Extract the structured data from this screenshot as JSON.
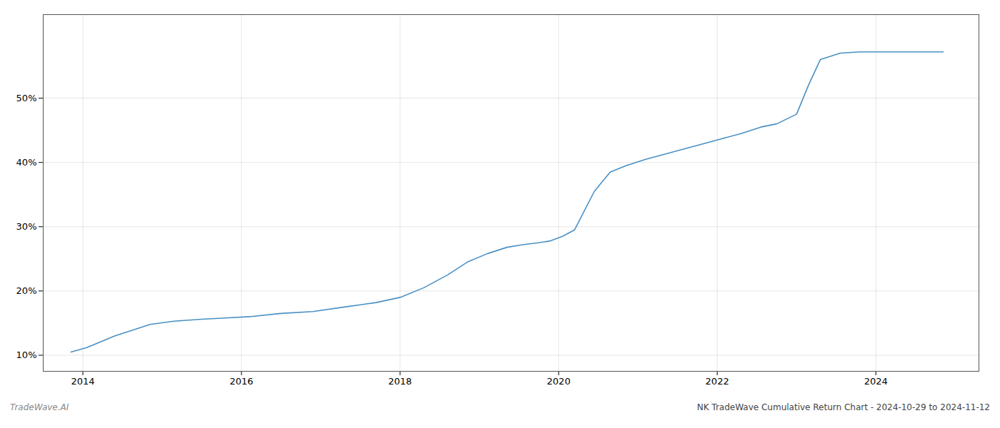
{
  "chart_data": {
    "type": "line",
    "title": "NK TradeWave Cumulative Return Chart - 2024-10-29 to 2024-11-12",
    "subtitle": "TradeWave.AI",
    "x": [
      2013.85,
      2014.05,
      2014.4,
      2014.85,
      2015.15,
      2015.5,
      2015.8,
      2016.1,
      2016.5,
      2016.9,
      2017.3,
      2017.7,
      2018.0,
      2018.3,
      2018.6,
      2018.85,
      2019.1,
      2019.35,
      2019.55,
      2019.75,
      2019.9,
      2020.05,
      2020.2,
      2020.45,
      2020.65,
      2020.85,
      2021.1,
      2021.4,
      2021.7,
      2022.0,
      2022.3,
      2022.55,
      2022.75,
      2023.0,
      2023.15,
      2023.3,
      2023.55,
      2023.8,
      2024.0,
      2024.3,
      2024.6,
      2024.85
    ],
    "values": [
      10.5,
      11.2,
      13.0,
      14.8,
      15.3,
      15.6,
      15.8,
      16.0,
      16.5,
      16.8,
      17.5,
      18.2,
      19.0,
      20.5,
      22.5,
      24.5,
      25.8,
      26.8,
      27.2,
      27.5,
      27.8,
      28.5,
      29.5,
      35.5,
      38.5,
      39.5,
      40.5,
      41.5,
      42.5,
      43.5,
      44.5,
      45.5,
      46.0,
      47.5,
      52.0,
      56.0,
      57.0,
      57.2,
      57.2,
      57.2,
      57.2,
      57.2
    ],
    "color": "#4a90c4",
    "xlim": [
      2013.5,
      2025.3
    ],
    "ylim": [
      7.5,
      63
    ],
    "xticks": [
      2014,
      2016,
      2018,
      2020,
      2022,
      2024
    ],
    "yticks": [
      {
        "value": 10,
        "label": "10%"
      },
      {
        "value": 20,
        "label": "20%"
      },
      {
        "value": 30,
        "label": "30%"
      },
      {
        "value": 40,
        "label": "40%"
      },
      {
        "value": 50,
        "label": "50%"
      }
    ],
    "grid": true
  }
}
